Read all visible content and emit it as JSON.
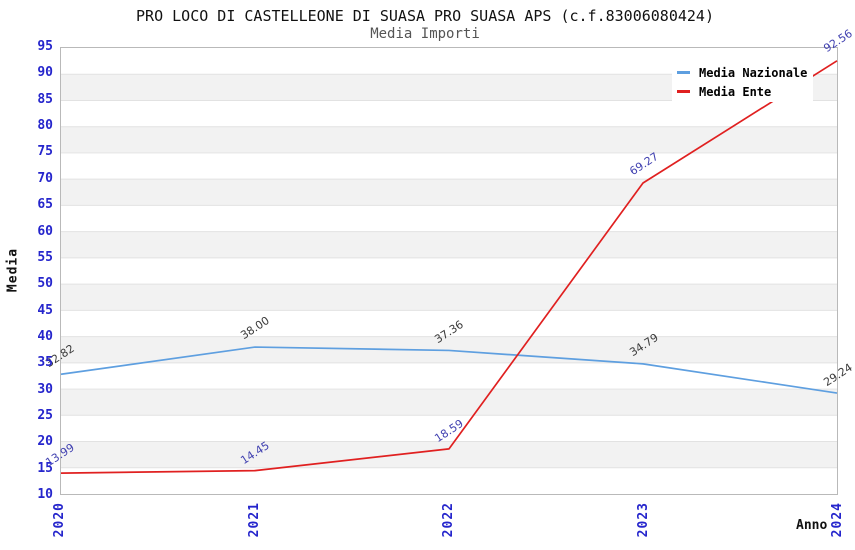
{
  "header": {
    "title": "PRO LOCO DI CASTELLEONE DI SUASA PRO SUASA APS (c.f.83006080424)",
    "subtitle": "Media Importi"
  },
  "chart_data": {
    "type": "line",
    "title": "PRO LOCO DI CASTELLEONE DI SUASA PRO SUASA APS (c.f.83006080424)",
    "subtitle": "Media Importi",
    "categories": [
      "2020",
      "2021",
      "2022",
      "2023",
      "2024"
    ],
    "series": [
      {
        "name": "Media Nazionale",
        "color": "#5E9FE0",
        "label_color": "#3A3A3A",
        "values": [
          32.82,
          38.0,
          37.36,
          34.79,
          29.24
        ]
      },
      {
        "name": "Media Ente",
        "color": "#E02020",
        "label_color": "#4040B0",
        "values": [
          13.99,
          14.45,
          18.59,
          69.27,
          92.56
        ]
      }
    ],
    "xlabel": "Anno",
    "ylabel": "Media",
    "ylim": [
      10,
      95
    ],
    "ytick_step": 5,
    "grid": "horizontal",
    "band_fill": "alternating",
    "legend_position": "top-right",
    "colors": {
      "tick_label": "#2525CC",
      "band": "#F2F2F2",
      "gridline": "#E2E2E2",
      "plot_border": "#B9B9B9",
      "title": "#111111",
      "subtitle": "#555555"
    }
  }
}
